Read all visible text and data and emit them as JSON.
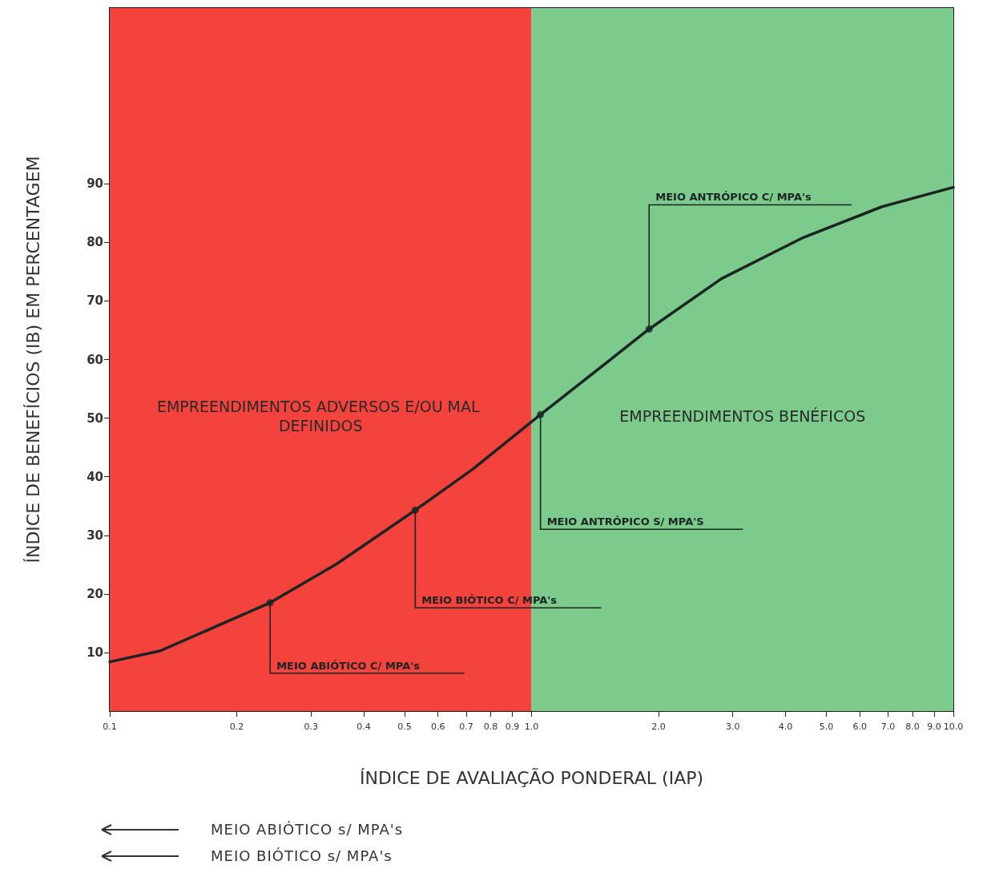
{
  "chart_data": {
    "type": "line",
    "xlabel": "ÍNDICE DE AVALIAÇÃO PONDERAL (IAP)",
    "ylabel": "ÍNDICE DE BENEFÍCIOS (IB) EM PERCENTAGEM",
    "log": "x",
    "xlim": [
      0.1,
      10
    ],
    "xticks": [
      0.1,
      0.2,
      0.3,
      0.4,
      0.5,
      0.6,
      0.7,
      0.8,
      0.9,
      {
        "value": 1,
        "label": "1.0"
      },
      {
        "value": 2,
        "label": "2.0"
      },
      {
        "value": 3,
        "label": "3.0"
      },
      {
        "value": 4,
        "label": "4.0"
      },
      {
        "value": 5,
        "label": "5.0"
      },
      {
        "value": 6,
        "label": "6.0"
      },
      {
        "value": 7,
        "label": "7.0"
      },
      {
        "value": 8,
        "label": "8.0"
      },
      {
        "value": 9,
        "label": "9.0"
      },
      {
        "value": 10,
        "label": "10.0"
      }
    ],
    "ylim": [
      0,
      120
    ],
    "yticks": [
      10,
      20,
      30,
      40,
      50,
      60,
      70,
      80,
      90
    ],
    "grid": false,
    "series": [
      {
        "color": "#1c2424",
        "marker": "none",
        "line_style": "solid",
        "x": [
          0.1,
          0.132,
          0.24,
          0.345,
          0.53,
          0.726,
          1.05,
          1.9,
          2.82,
          4.37,
          6.78,
          10
        ],
        "values": [
          8.4,
          10.3,
          18.5,
          25.1,
          34.3,
          41.3,
          50.6,
          65.2,
          73.8,
          80.7,
          86.1,
          89.4
        ]
      },
      {
        "type": "scatter",
        "color": "#1c2424",
        "marker": "circle",
        "x": [
          0.24,
          0.53,
          1.05,
          1.9
        ],
        "values": [
          18.5,
          34.3,
          50.6,
          65.2
        ]
      }
    ],
    "bands": [
      {
        "axis": "x",
        "from": 0.1,
        "to": 1,
        "label": "EMPREENDIMENTOS ADVERSOS E/OU MAL DEFINIDOS",
        "color": "#f4423c"
      },
      {
        "axis": "x",
        "from": 1,
        "to": 10,
        "label": "EMPREENDIMENTOS BENÉFICOS",
        "color": "#7ccb8c"
      }
    ],
    "annotations": [
      {
        "text": "MEIO ABIÓTICO C/ MPA's",
        "x": 0.24,
        "y": 18.5
      },
      {
        "text": "MEIO BIÓTICO C/ MPA's",
        "x": 0.53,
        "y": 34.3
      },
      {
        "text": "MEIO ANTRÓPICO S/ MPA'S",
        "x": 1.05,
        "y": 50.6
      },
      {
        "text": "MEIO ANTRÓPICO C/ MPA's",
        "x": 1.9,
        "y": 65.2
      },
      "MEIO ABIÓTICO s/ MPA's",
      "MEIO BIÓTICO s/ MPA's"
    ]
  }
}
